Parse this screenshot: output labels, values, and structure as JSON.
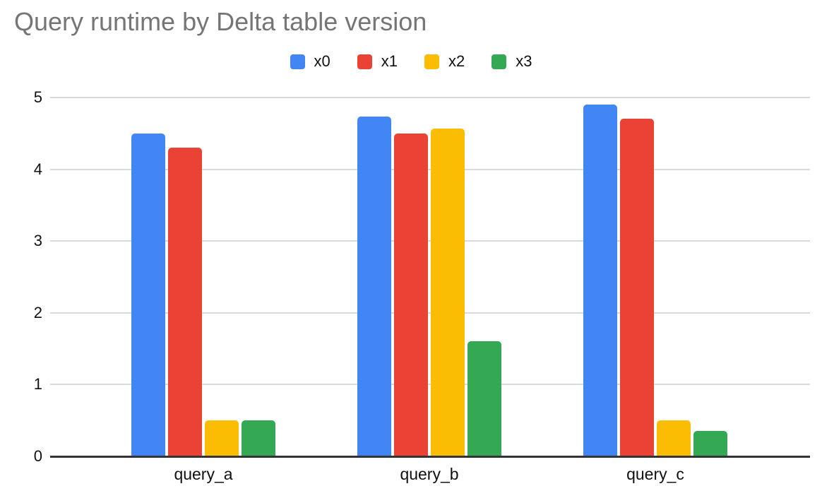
{
  "chart_data": {
    "type": "bar",
    "title": "Query runtime by Delta table version",
    "xlabel": "",
    "ylabel": "",
    "categories": [
      "query_a",
      "query_b",
      "query_c"
    ],
    "series": [
      {
        "name": "x0",
        "color": "#4285F4",
        "values": [
          4.5,
          4.73,
          4.9
        ]
      },
      {
        "name": "x1",
        "color": "#EA4335",
        "values": [
          4.3,
          4.5,
          4.7
        ]
      },
      {
        "name": "x2",
        "color": "#FBBC04",
        "values": [
          0.5,
          4.57,
          0.5
        ]
      },
      {
        "name": "x3",
        "color": "#34A853",
        "values": [
          0.5,
          1.6,
          0.35
        ]
      }
    ],
    "ylim": [
      0,
      5
    ],
    "yticks": [
      0,
      1,
      2,
      3,
      4,
      5
    ],
    "grid": true,
    "legend_position": "top",
    "colors": {
      "title_text": "#757575",
      "label_text": "#111111",
      "gridline": "#d9d9d9",
      "axis_baseline": "#333333",
      "background": "#ffffff"
    }
  }
}
